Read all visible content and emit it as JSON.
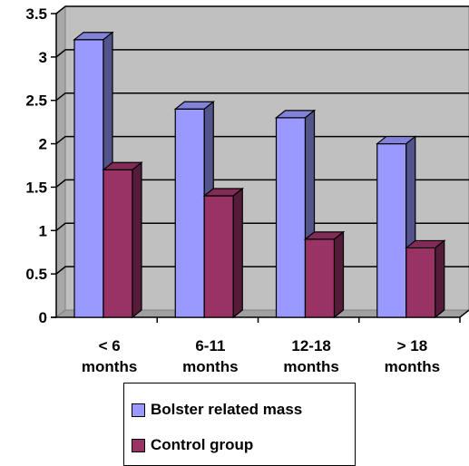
{
  "chart_data": {
    "type": "bar",
    "categories": [
      [
        "< 6",
        "months"
      ],
      [
        "6-11",
        "months"
      ],
      [
        "12-18",
        "months"
      ],
      [
        "> 18",
        "months"
      ]
    ],
    "series": [
      {
        "name": "Bolster related mass",
        "values": [
          3.2,
          2.4,
          2.3,
          2.0
        ],
        "color": "#9999ff"
      },
      {
        "name": "Control group",
        "values": [
          1.7,
          1.4,
          0.9,
          0.8
        ],
        "color": "#993366"
      }
    ],
    "ylim": [
      0,
      3.5
    ],
    "yticks": [
      "0",
      "0.5",
      "1",
      "1.5",
      "2",
      "2.5",
      "3",
      "3.5"
    ],
    "grid": true,
    "style3d": true,
    "plot_background": "#c0c0c0",
    "legend_position": "bottom"
  }
}
